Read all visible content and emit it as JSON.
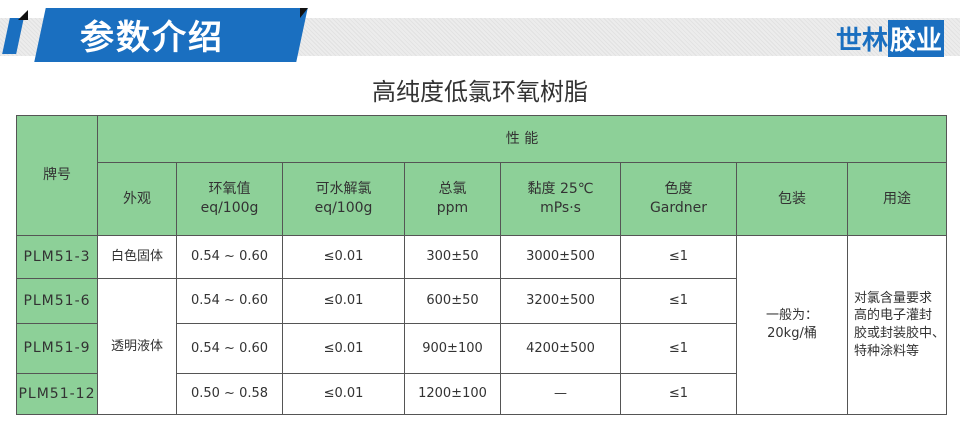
{
  "banner": {
    "title": "参数介绍",
    "brand_a": "世林",
    "brand_b": "胶业"
  },
  "product_title": "高纯度低氯环氧树脂",
  "table": {
    "col_model": "牌号",
    "group_header": "性 能",
    "headers": [
      {
        "l1": "外观",
        "l2": ""
      },
      {
        "l1": "环氧值",
        "l2": "eq/100g"
      },
      {
        "l1": "可水解氯",
        "l2": "eq/100g"
      },
      {
        "l1": "总氯",
        "l2": "ppm"
      },
      {
        "l1": "黏度 25℃",
        "l2": "mPs·s"
      },
      {
        "l1": "色度",
        "l2": "Gardner"
      },
      {
        "l1": "包装",
        "l2": ""
      },
      {
        "l1": "用途",
        "l2": ""
      }
    ],
    "rows": [
      {
        "model": "PLM51-3",
        "epoxy": "0.54 ~ 0.60",
        "hydro_cl": "≤0.01",
        "total_cl": "300±50",
        "viscosity": "3000±500",
        "color": "≤1"
      },
      {
        "model": "PLM51-6",
        "epoxy": "0.54 ~ 0.60",
        "hydro_cl": "≤0.01",
        "total_cl": "600±50",
        "viscosity": "3200±500",
        "color": "≤1"
      },
      {
        "model": "PLM51-9",
        "epoxy": "0.54 ~ 0.60",
        "hydro_cl": "≤0.01",
        "total_cl": "900±100",
        "viscosity": "4200±500",
        "color": "≤1"
      },
      {
        "model": "PLM51-12",
        "epoxy": "0.50 ~ 0.58",
        "hydro_cl": "≤0.01",
        "total_cl": "1200±100",
        "viscosity": "—",
        "color": "≤1"
      }
    ],
    "appearance_solid": "白色固体",
    "appearance_liquid": "透明液体",
    "packaging_l1": "一般为：",
    "packaging_l2": "20kg/桶",
    "usage": [
      "对氯含量要求",
      "高的电子灌封",
      "胶或封装胶中、",
      "特种涂料等"
    ]
  },
  "colors": {
    "accent_blue": "#1a6fc0",
    "header_green": "#8dd098"
  }
}
